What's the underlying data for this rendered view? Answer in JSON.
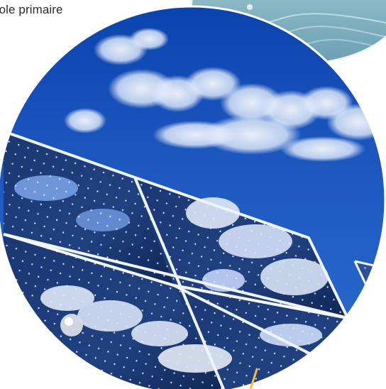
{
  "caption": {
    "text": "cole primaire"
  },
  "colors": {
    "sky_top": "#0f4db8",
    "sky_mid": "#2c66c8",
    "cloud": "#f4f8ff",
    "panel_dark": "#1a2f63",
    "panel_frame": "#f0f4ff",
    "water": "#7fb2c4",
    "accent_yellow": "#f2c23b"
  },
  "scene": {
    "main_circle": "solar-panel-sky-photo",
    "top_right_circle": "water-photo",
    "sun_reflection": "sun-reflection-icon"
  }
}
